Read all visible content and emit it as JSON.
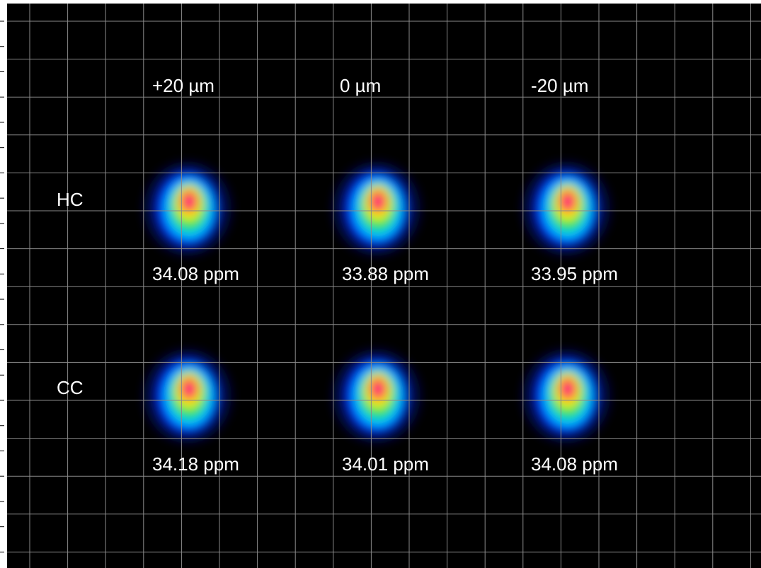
{
  "columns": [
    "+20 µm",
    "0 µm",
    "-20 µm"
  ],
  "rows": [
    {
      "label": "HC",
      "cells": [
        "34.08 ppm",
        "33.88 ppm",
        "33.95 ppm"
      ]
    },
    {
      "label": "CC",
      "cells": [
        "34.18 ppm",
        "34.01 ppm",
        "34.08 ppm"
      ]
    }
  ]
}
